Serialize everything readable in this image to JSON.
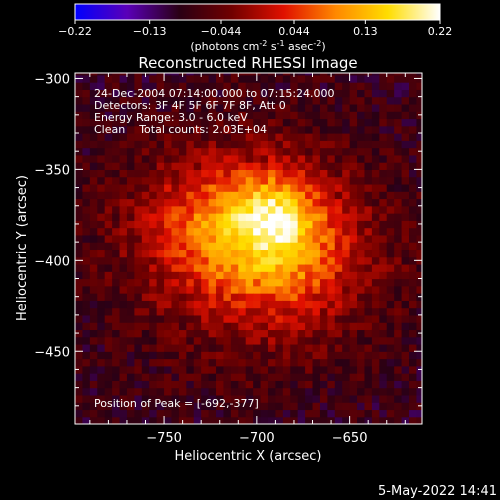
{
  "chart_data": {
    "type": "heatmap",
    "title": "Reconstructed RHESSI Image",
    "xlabel": "Heliocentric X (arcsec)",
    "ylabel": "Heliocentric Y (arcsec)",
    "xlim": [
      -798,
      -611
    ],
    "ylim": [
      -490,
      -297
    ],
    "x_ticks": [
      -750,
      -700,
      -650
    ],
    "y_ticks": [
      -300,
      -350,
      -400,
      -450
    ],
    "colorbar": {
      "range": [
        -0.22,
        0.22
      ],
      "ticks": [
        "-0.22",
        "-0.13",
        "-0.044",
        "0.044",
        "0.13",
        "0.22"
      ],
      "unit_text": "(photons cm",
      "unit_sup1": "-2",
      "unit_mid1": " s",
      "unit_sup2": "-1",
      "unit_mid2": " asec",
      "unit_sup3": "-2",
      "unit_end": ")",
      "colors": [
        "#0000ff",
        "#5a00b8",
        "#2a0014",
        "#700000",
        "#e01000",
        "#ff8800",
        "#ffdd00",
        "#ffffff"
      ]
    },
    "annotations": [
      "24-Dec-2004 07:14:00.000 to 07:15:24.000",
      "Detectors: 3F 4F 5F 6F 7F 8F, Att 0",
      "Energy Range: 3.0 - 6.0 keV",
      "Clean    Total counts: 2.03E+04"
    ],
    "peak_label": "Position of Peak = [-692,-377]",
    "peak": [
      -692,
      -377
    ],
    "source_gaussians": [
      {
        "x": -692,
        "y": -377,
        "sx": 14,
        "sy": 14,
        "a": 0.1
      },
      {
        "x": -718,
        "y": -382,
        "sx": 30,
        "sy": 24,
        "a": 0.11
      },
      {
        "x": -685,
        "y": -400,
        "sx": 28,
        "sy": 26,
        "a": 0.09
      },
      {
        "x": -705,
        "y": -395,
        "sx": 55,
        "sy": 48,
        "a": 0.08
      }
    ],
    "background_level": -0.09,
    "noise_amplitude": 0.035
  },
  "footer": {
    "date": "5-May-2022 14:41"
  }
}
